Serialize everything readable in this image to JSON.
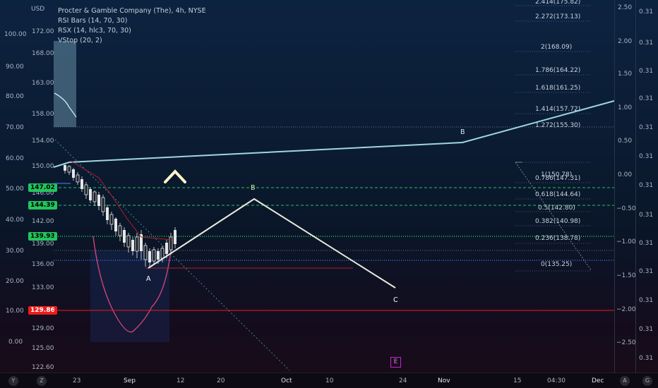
{
  "header": {
    "currency": "USD",
    "title": "Procter & Gamble Company (The), 4h, NYSE",
    "indicators": [
      "RSI Bars (14, 70, 30)",
      "RSX (14, hlc3, 70, 30)",
      "VStop (20, 2)"
    ]
  },
  "left_axis": [
    "100.00",
    "90.00",
    "80.00",
    "70.00",
    "60.00",
    "50.00",
    "40.00",
    "30.00",
    "20.00",
    "10.00",
    "0.00"
  ],
  "price_axis": [
    "172.00",
    "168.00",
    "163.00",
    "158.00",
    "154.00",
    "150.00",
    "146.00",
    "142.00",
    "139.00",
    "136.00",
    "133.00",
    "129.00",
    "125.00",
    "122.60"
  ],
  "price_tags": [
    {
      "label": "147.02",
      "color": "#22c55e"
    },
    {
      "label": "144.39",
      "color": "#22c55e"
    },
    {
      "label": "139.93",
      "color": "#22c55e"
    },
    {
      "label": "129.86",
      "color": "#ef1b1b"
    }
  ],
  "right_axis_1": [
    "2.50",
    "2.00",
    "1.50",
    "1.00",
    "0.50",
    "0.00",
    "−0.50",
    "−1.00",
    "−1.50",
    "−2.00",
    "−2.50"
  ],
  "right_axis_2": [
    "0.31",
    "0.31",
    "0.31",
    "0.31",
    "0.31",
    "0.31",
    "0.31",
    "0.31",
    "0.31",
    "0.31",
    "0.31",
    "0.31",
    "0.31"
  ],
  "fib_levels": [
    {
      "label": "2.414(175.82)"
    },
    {
      "label": "2.272(173.13)"
    },
    {
      "label": "2(168.09)"
    },
    {
      "label": "1.786(164.22)"
    },
    {
      "label": "1.618(161.25)"
    },
    {
      "label": "1.414(157.72)"
    },
    {
      "label": "1.272(155.30)"
    },
    {
      "label": "1(150.78)"
    },
    {
      "label": "0.786(147.31)"
    },
    {
      "label": "0.618(144.64)"
    },
    {
      "label": "0.5(142.80)"
    },
    {
      "label": "0.382(140.98)"
    },
    {
      "label": "0.236(138.78)"
    },
    {
      "label": "0(135.25)"
    }
  ],
  "wave_labels": {
    "a": "A",
    "b": "B",
    "c": "C",
    "b_upper": "B"
  },
  "time_axis": [
    "23",
    "Sep",
    "12",
    "20",
    "Oct",
    "10",
    "24",
    "Nov",
    "15",
    "04:30",
    "Dec"
  ],
  "bottom_left_buttons": [
    "Y",
    "Z"
  ],
  "bottom_right_buttons": [
    "A",
    "G"
  ],
  "event_marker": "E",
  "colors": {
    "bull_trend": "#9fd6dd",
    "wave_path": "#e8eadb",
    "green_level": "#22c55e",
    "red_level": "#ef1b1b",
    "rsx_line": "#d9467a",
    "blue_level": "#3b6fd6"
  }
}
